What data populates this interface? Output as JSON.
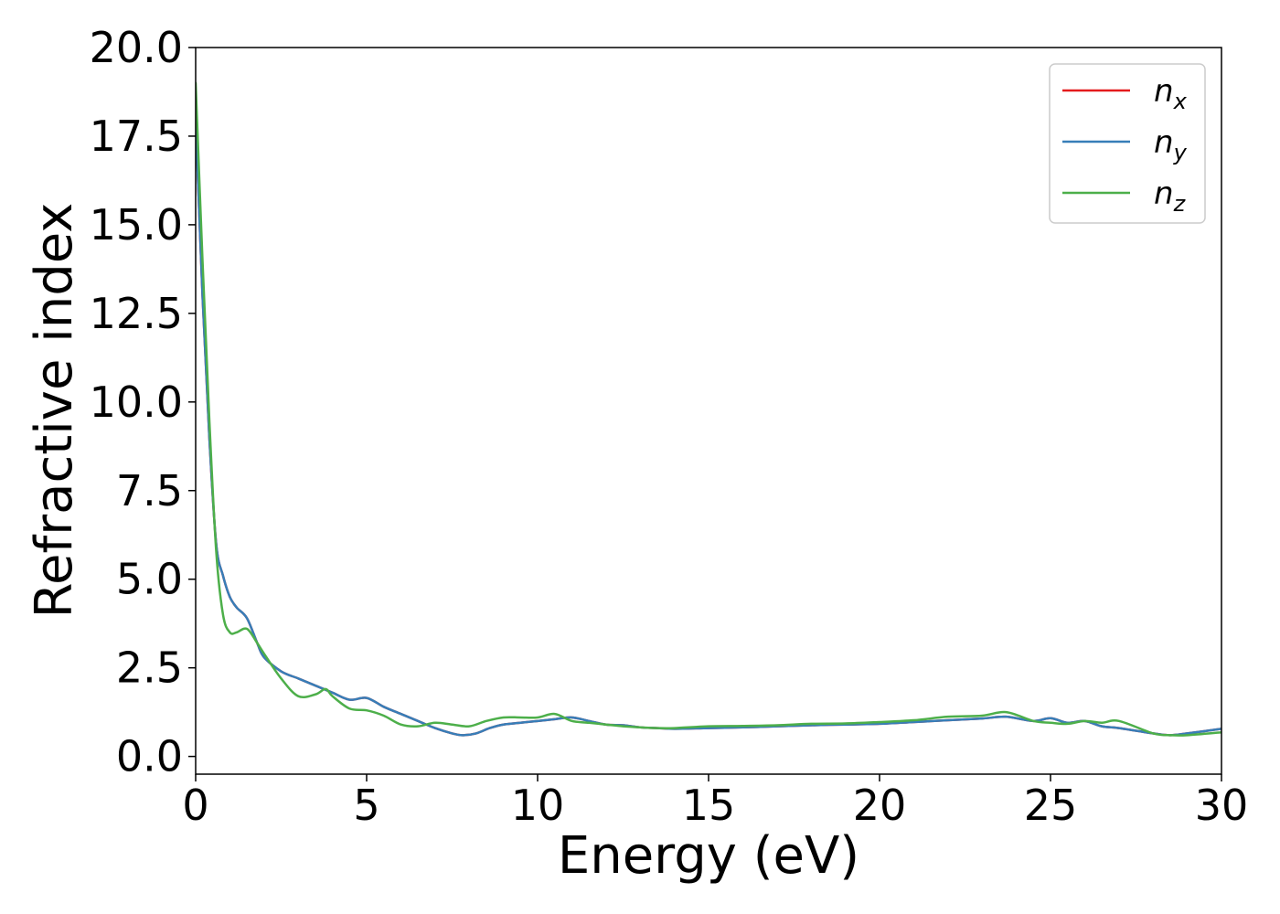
{
  "chart_data": {
    "type": "line",
    "title": "",
    "xlabel": "Energy (eV)",
    "ylabel": "Refractive index",
    "xlim": [
      0,
      30
    ],
    "ylim": [
      -0.5,
      20
    ],
    "xticks": [
      0,
      5,
      10,
      15,
      20,
      25,
      30
    ],
    "xtick_labels": [
      "0",
      "5",
      "10",
      "15",
      "20",
      "25",
      "30"
    ],
    "yticks": [
      0,
      2.5,
      5,
      7.5,
      10,
      12.5,
      15,
      17.5,
      20
    ],
    "ytick_labels": [
      "0.0",
      "2.5",
      "5.0",
      "7.5",
      "10.0",
      "12.5",
      "15.0",
      "17.5",
      "20.0"
    ],
    "grid": false,
    "legend_position": "top-right",
    "series": [
      {
        "name": "n",
        "subscript": "x",
        "color": "#e41a1c",
        "x": [
          0,
          0.2,
          0.4,
          0.6,
          0.8,
          1.0,
          1.2,
          1.5,
          1.8,
          2.0,
          2.5,
          3.0,
          3.5,
          4.0,
          4.5,
          5.0,
          5.5,
          6.0,
          6.5,
          7.0,
          7.5,
          7.8,
          8.2,
          8.6,
          9.0,
          9.5,
          10.0,
          10.5,
          11.0,
          11.5,
          12.0,
          12.5,
          13.0,
          13.5,
          14.0,
          15.0,
          16.0,
          17.0,
          18.0,
          19.0,
          20.0,
          21.0,
          22.0,
          23.0,
          23.7,
          24.5,
          25.0,
          25.5,
          26.0,
          26.5,
          27.0,
          28.0,
          28.5,
          29.0,
          30.0
        ],
        "y": [
          18.0,
          13.0,
          9.0,
          6.0,
          5.1,
          4.5,
          4.2,
          3.9,
          3.2,
          2.8,
          2.4,
          2.2,
          2.0,
          1.8,
          1.6,
          1.65,
          1.4,
          1.2,
          1.0,
          0.8,
          0.65,
          0.6,
          0.65,
          0.8,
          0.9,
          0.95,
          1.0,
          1.05,
          1.1,
          1.0,
          0.9,
          0.88,
          0.82,
          0.8,
          0.78,
          0.8,
          0.82,
          0.85,
          0.88,
          0.9,
          0.92,
          0.97,
          1.02,
          1.07,
          1.12,
          1.0,
          1.08,
          0.95,
          1.0,
          0.85,
          0.8,
          0.65,
          0.6,
          0.65,
          0.78
        ]
      },
      {
        "name": "n",
        "subscript": "y",
        "color": "#377eb8",
        "x": [
          0,
          0.2,
          0.4,
          0.6,
          0.8,
          1.0,
          1.2,
          1.5,
          1.8,
          2.0,
          2.5,
          3.0,
          3.5,
          4.0,
          4.5,
          5.0,
          5.5,
          6.0,
          6.5,
          7.0,
          7.5,
          7.8,
          8.2,
          8.6,
          9.0,
          9.5,
          10.0,
          10.5,
          11.0,
          11.5,
          12.0,
          12.5,
          13.0,
          13.5,
          14.0,
          15.0,
          16.0,
          17.0,
          18.0,
          19.0,
          20.0,
          21.0,
          22.0,
          23.0,
          23.7,
          24.5,
          25.0,
          25.5,
          26.0,
          26.5,
          27.0,
          28.0,
          28.5,
          29.0,
          30.0
        ],
        "y": [
          18.0,
          13.0,
          9.0,
          6.0,
          5.1,
          4.5,
          4.2,
          3.9,
          3.2,
          2.8,
          2.4,
          2.2,
          2.0,
          1.8,
          1.6,
          1.65,
          1.4,
          1.2,
          1.0,
          0.8,
          0.65,
          0.6,
          0.65,
          0.8,
          0.9,
          0.95,
          1.0,
          1.05,
          1.1,
          1.0,
          0.9,
          0.88,
          0.82,
          0.8,
          0.78,
          0.8,
          0.82,
          0.85,
          0.88,
          0.9,
          0.92,
          0.97,
          1.02,
          1.07,
          1.12,
          1.0,
          1.08,
          0.95,
          1.0,
          0.85,
          0.8,
          0.65,
          0.6,
          0.65,
          0.78
        ]
      },
      {
        "name": "n",
        "subscript": "z",
        "color": "#4daf4a",
        "x": [
          0,
          0.2,
          0.4,
          0.6,
          0.8,
          1.0,
          1.2,
          1.5,
          1.8,
          2.0,
          2.5,
          3.0,
          3.5,
          3.8,
          4.0,
          4.5,
          5.0,
          5.5,
          6.0,
          6.5,
          7.0,
          7.5,
          8.0,
          8.5,
          9.0,
          9.5,
          10.0,
          10.5,
          11.0,
          11.5,
          12.0,
          12.5,
          13.0,
          13.5,
          14.0,
          15.0,
          16.0,
          17.0,
          18.0,
          19.0,
          20.0,
          21.0,
          22.0,
          23.0,
          23.7,
          24.5,
          25.0,
          25.5,
          26.0,
          26.5,
          27.0,
          28.0,
          28.5,
          29.0,
          30.0
        ],
        "y": [
          19.0,
          14.0,
          9.5,
          5.8,
          4.0,
          3.5,
          3.5,
          3.6,
          3.2,
          2.9,
          2.2,
          1.7,
          1.75,
          1.9,
          1.7,
          1.35,
          1.3,
          1.15,
          0.9,
          0.85,
          0.95,
          0.9,
          0.85,
          1.0,
          1.1,
          1.1,
          1.1,
          1.2,
          1.0,
          0.95,
          0.9,
          0.85,
          0.82,
          0.8,
          0.8,
          0.85,
          0.86,
          0.88,
          0.92,
          0.93,
          0.97,
          1.02,
          1.12,
          1.15,
          1.25,
          1.0,
          0.95,
          0.92,
          1.0,
          0.95,
          1.0,
          0.65,
          0.6,
          0.6,
          0.68
        ]
      }
    ]
  }
}
